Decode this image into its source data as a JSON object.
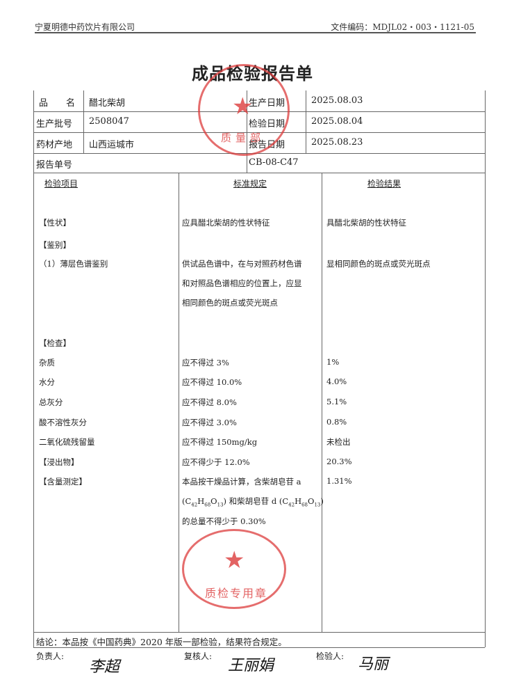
{
  "header": {
    "company": "宁夏明德中药饮片有限公司",
    "doc_code": "文件编码：MDJL02・003・1121-05"
  },
  "title": "成品检验报告单",
  "info": {
    "name_label": "品　　名",
    "name": "醋北柴胡",
    "prod_date_label": "生产日期",
    "prod_date": "2025.08.03",
    "batch_label": "生产批号",
    "batch": "2508047",
    "test_date_label": "检验日期",
    "test_date": "2025.08.04",
    "origin_label": "药材产地",
    "origin": "山西运城市",
    "report_date_label": "报告日期",
    "report_date": "2025.08.23",
    "report_no_label": "报告单号",
    "report_no": "CB-08-C47"
  },
  "columns": [
    "检验项目",
    "标准规定",
    "检验结果"
  ],
  "items": [
    {
      "item": "【性状】",
      "standard": "应具醋北柴胡的性状特征",
      "result": "具醋北柴胡的性状特征"
    },
    {
      "item": "【鉴别】",
      "standard": "",
      "result": ""
    },
    {
      "item": "（1）薄层色谱鉴别",
      "standard": "供试品色谱中，在与对照药材色谱",
      "result": "显相同颜色的斑点或荧光斑点"
    },
    {
      "item": "",
      "standard": "和对照品色谱相应的位置上，应显",
      "result": ""
    },
    {
      "item": "",
      "standard": "相同颜色的斑点或荧光斑点",
      "result": ""
    },
    {
      "item": "【检查】",
      "standard": "",
      "result": ""
    },
    {
      "item": "杂质",
      "standard": "应不得过 3%",
      "result": "1%"
    },
    {
      "item": "水分",
      "standard": "应不得过 10.0%",
      "result": "4.0%"
    },
    {
      "item": "总灰分",
      "standard": "应不得过 8.0%",
      "result": "5.1%"
    },
    {
      "item": "酸不溶性灰分",
      "standard": "应不得过 3.0%",
      "result": "0.8%"
    },
    {
      "item": "二氧化硫残留量",
      "standard": "应不得过 150mg/kg",
      "result": "未检出"
    },
    {
      "item": "【浸出物】",
      "standard": "应不得少于 12.0%",
      "result": "20.3%"
    },
    {
      "item": "【含量测定】",
      "standard": "本品按干燥品计算，含柴胡皂苷 a",
      "result": "1.31%"
    },
    {
      "item": "",
      "standard": "(C42H68O13) 和柴胡皂苷 d (C42H68O13)",
      "result": ""
    },
    {
      "item": "",
      "standard": "的总量不得少于 0.30%",
      "result": ""
    }
  ],
  "conclusion": "结论：本品按《中国药典》2020 年版一部检验，结果符合规定。",
  "signatures": {
    "head_label": "负责人:",
    "head": "李超",
    "reviewer_label": "复核人:",
    "reviewer": "王丽娟",
    "inspector_label": "检验人:",
    "inspector": "马丽"
  },
  "stamps": {
    "top": "宁夏明德中药饮片有限公司 质量部",
    "bottom": "宁夏明德中药饮片有限公司 质检专用章"
  },
  "colors": {
    "stamp": "#dc3c3c"
  }
}
